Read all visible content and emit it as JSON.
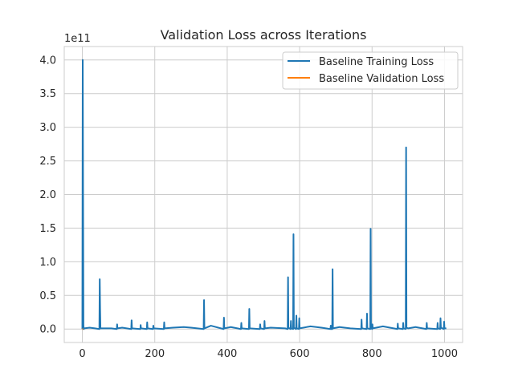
{
  "chart_data": {
    "type": "line",
    "title": "Validation Loss across Iterations",
    "xlabel": "",
    "ylabel": "",
    "y_offset_label": "1e11",
    "y_scale_factor": 100000000000.0,
    "xlim": [
      -50,
      1050
    ],
    "ylim": [
      -0.2,
      4.2
    ],
    "x_ticks": [
      0,
      200,
      400,
      600,
      800,
      1000
    ],
    "x_tick_labels": [
      "0",
      "200",
      "400",
      "600",
      "800",
      "1000"
    ],
    "y_ticks": [
      0.0,
      0.5,
      1.0,
      1.5,
      2.0,
      2.5,
      3.0,
      3.5,
      4.0
    ],
    "y_tick_labels": [
      "0.0",
      "0.5",
      "1.0",
      "1.5",
      "2.0",
      "2.5",
      "3.0",
      "3.5",
      "4.0"
    ],
    "grid": true,
    "legend_position": "top-right",
    "series": [
      {
        "name": "Baseline Training Loss",
        "color": "#1f77b4",
        "x": [
          0,
          1,
          2,
          3,
          4,
          5,
          20,
          35,
          47,
          48,
          49,
          50,
          60,
          80,
          95,
          96,
          97,
          110,
          135,
          136,
          137,
          160,
          161,
          162,
          178,
          179,
          180,
          195,
          196,
          197,
          225,
          226,
          227,
          250,
          280,
          300,
          335,
          336,
          337,
          355,
          390,
          391,
          392,
          410,
          438,
          439,
          440,
          460,
          461,
          462,
          490,
          491,
          492,
          502,
          503,
          504,
          520,
          560,
          567,
          568,
          569,
          575,
          576,
          577,
          582,
          583,
          584,
          590,
          591,
          592,
          598,
          599,
          600,
          630,
          660,
          685,
          686,
          687,
          690,
          691,
          692,
          710,
          740,
          770,
          771,
          772,
          785,
          786,
          787,
          795,
          796,
          797,
          800,
          801,
          802,
          830,
          870,
          871,
          872,
          885,
          886,
          887,
          893,
          894,
          895,
          900,
          920,
          950,
          951,
          952,
          980,
          981,
          982,
          988,
          989,
          990,
          998,
          999,
          1000,
          1005
        ],
        "values": [
          0.0,
          4.0,
          2.0,
          0.05,
          0.0,
          0.01,
          0.02,
          0.01,
          0.0,
          0.74,
          0.3,
          0.01,
          0.01,
          0.01,
          0.0,
          0.07,
          0.01,
          0.02,
          0.0,
          0.13,
          0.01,
          0.0,
          0.06,
          0.01,
          0.0,
          0.1,
          0.01,
          0.0,
          0.05,
          0.01,
          0.0,
          0.1,
          0.01,
          0.02,
          0.03,
          0.02,
          0.0,
          0.43,
          0.01,
          0.05,
          0.0,
          0.17,
          0.01,
          0.03,
          0.0,
          0.09,
          0.01,
          0.0,
          0.3,
          0.01,
          0.0,
          0.07,
          0.01,
          0.0,
          0.12,
          0.01,
          0.02,
          0.01,
          0.0,
          0.77,
          0.02,
          0.0,
          0.12,
          0.01,
          0.0,
          1.41,
          0.02,
          0.0,
          0.2,
          0.01,
          0.0,
          0.16,
          0.01,
          0.04,
          0.02,
          0.0,
          0.05,
          0.0,
          0.0,
          0.89,
          0.01,
          0.03,
          0.01,
          0.0,
          0.14,
          0.01,
          0.0,
          0.23,
          0.01,
          0.0,
          1.49,
          0.02,
          0.0,
          0.07,
          0.01,
          0.04,
          0.0,
          0.08,
          0.01,
          0.0,
          0.09,
          0.01,
          0.0,
          2.7,
          0.02,
          0.01,
          0.03,
          0.0,
          0.09,
          0.01,
          0.0,
          0.09,
          0.01,
          0.0,
          0.16,
          0.02,
          0.0,
          0.11,
          0.01,
          0.01
        ]
      },
      {
        "name": "Baseline Validation Loss",
        "color": "#ff7f0e",
        "x": [
          0,
          1,
          2
        ],
        "values": [
          0.0,
          0.0,
          0.0
        ]
      }
    ]
  }
}
